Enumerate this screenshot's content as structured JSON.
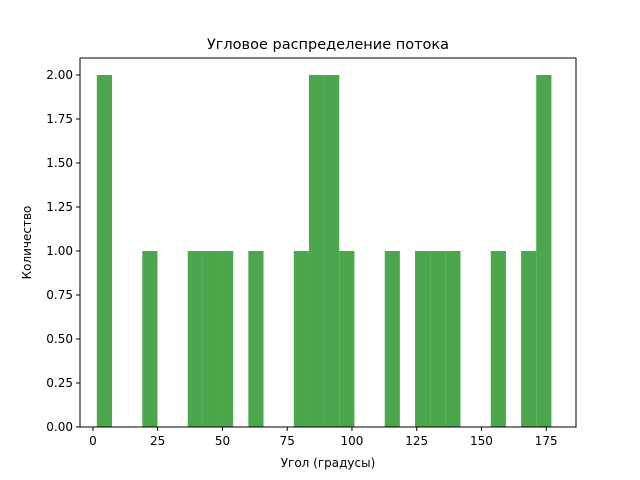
{
  "chart_data": {
    "type": "bar",
    "title": "Угловое распределение потока",
    "xlabel": "Угол (градусы)",
    "ylabel": "Количество",
    "xlim": [
      -5,
      186.5
    ],
    "ylim": [
      0,
      2.0
    ],
    "xticks": [
      0,
      25,
      50,
      75,
      100,
      125,
      150,
      175
    ],
    "yticks": [
      0.0,
      0.25,
      0.5,
      0.75,
      1.0,
      1.25,
      1.5,
      1.75,
      2.0
    ],
    "ytick_labels": [
      "0.00",
      "0.25",
      "0.50",
      "0.75",
      "1.00",
      "1.25",
      "1.50",
      "1.75",
      "2.00"
    ],
    "bin_edges": [
      1.5,
      7.35,
      13.2,
      19.05,
      24.9,
      30.75,
      36.6,
      42.45,
      48.3,
      54.15,
      60.0,
      65.85,
      71.7,
      77.55,
      83.4,
      89.25,
      95.1,
      100.95,
      106.8,
      112.65,
      118.5,
      124.35,
      130.2,
      136.05,
      141.9,
      147.75,
      153.6,
      159.45,
      165.3,
      171.15,
      177.0
    ],
    "counts": [
      2,
      0,
      0,
      1,
      0,
      0,
      1,
      1,
      1,
      0,
      1,
      0,
      0,
      1,
      2,
      2,
      1,
      0,
      0,
      1,
      0,
      1,
      1,
      1,
      0,
      0,
      1,
      0,
      1,
      2
    ],
    "bar_color": "#4ca64c",
    "grid": false
  }
}
